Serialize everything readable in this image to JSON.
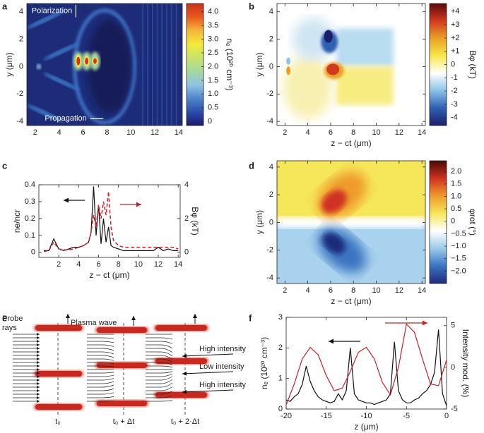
{
  "chart_data": [
    {
      "type": "heatmap",
      "panel": "a",
      "ylabel": "y (μm)",
      "xlim": [
        1.3,
        14.3
      ],
      "xticks": [
        2,
        4,
        6,
        8,
        10,
        12,
        14
      ],
      "ylim": [
        -4.3,
        4.6
      ],
      "yticks": [
        -4,
        -2,
        0,
        2,
        4
      ],
      "annotations": [
        "Polarization",
        "Propagation"
      ],
      "colorbar": {
        "label": "nₑ (10²⁰ cm⁻³)",
        "lim": [
          -0.15,
          4.3
        ],
        "ticks": [
          0,
          {
            "value": 0.5,
            "label": "0.5"
          },
          {
            "value": 1,
            "label": "1.0"
          },
          {
            "value": 1.5,
            "label": "1.5"
          },
          {
            "value": 2,
            "label": "2.0"
          },
          {
            "value": 2.5,
            "label": "2.5"
          },
          {
            "value": 3,
            "label": "3.0"
          },
          {
            "value": 3.5,
            "label": "3.5"
          },
          {
            "value": 4,
            "label": "4.0"
          }
        ],
        "colors": [
          "#1a1a6e",
          "#2b4dab",
          "#4f86c9",
          "#8fc4e0",
          "#a8d8a0",
          "#c8e46a",
          "#f2ea3a",
          "#f5b73a",
          "#e85a1e",
          "#c8321a"
        ]
      }
    },
    {
      "type": "heatmap",
      "panel": "b",
      "xlabel": "z − ct (μm)",
      "ylabel": "y (μm)",
      "xlim": [
        1.3,
        14.3
      ],
      "xticks": [
        2,
        4,
        6,
        8,
        10,
        12,
        14
      ],
      "ylim": [
        -4.3,
        4.6
      ],
      "yticks": [
        -4,
        -2,
        0,
        2,
        4
      ],
      "colorbar": {
        "label": "Bφ (kT)",
        "lim": [
          -4.6,
          4.6
        ],
        "ticks": [
          -4,
          -3,
          -2,
          -1,
          0,
          {
            "value": 1,
            "label": "+1"
          },
          {
            "value": 2,
            "label": "+2"
          },
          {
            "value": 3,
            "label": "+3"
          },
          {
            "value": 4,
            "label": "+4"
          }
        ],
        "colors": [
          "#1a1f6b",
          "#2e5fb0",
          "#8ac3e6",
          "#ffffff",
          "#f7e84a",
          "#e9a025",
          "#d23a1e",
          "#5a0a0a"
        ]
      }
    },
    {
      "type": "line",
      "panel": "c",
      "xlabel": "z − ct (μm)",
      "ylabel": "ne/ncr",
      "y2label": "Bφ (kT)",
      "xlim": [
        0,
        14.2
      ],
      "xticks": [
        2,
        4,
        6,
        8,
        10,
        12,
        14
      ],
      "ylim": [
        -0.03,
        0.4
      ],
      "yticks": [
        0,
        0.1,
        0.2,
        0.3,
        0.4
      ],
      "y2lim": [
        -0.3,
        4
      ],
      "y2ticks": [
        0,
        2,
        4
      ],
      "x": [
        0.5,
        1,
        1.5,
        2,
        2.5,
        3,
        3.5,
        4,
        4.5,
        5,
        5.25,
        5.5,
        5.75,
        6,
        6.25,
        6.5,
        6.75,
        7,
        7.25,
        7.5,
        8,
        8.5,
        9,
        9.5,
        10,
        10.5,
        11,
        11.5,
        12,
        12.5,
        13,
        13.5,
        14
      ],
      "series": [
        {
          "color": "#111111",
          "values": [
            0.01,
            0.01,
            0.08,
            0.02,
            0.01,
            0.02,
            0.03,
            0.03,
            0.04,
            0.06,
            0.12,
            0.39,
            0.1,
            0.28,
            0.05,
            0.2,
            0.06,
            0.15,
            0.04,
            0.03,
            0.02,
            0.01,
            0.01,
            0.01,
            0.01,
            0.01,
            0.01,
            0.01,
            0.03,
            0.01,
            0.02,
            0.01,
            0.01
          ]
        },
        {
          "color": "#d0202a",
          "axis": "y2",
          "dashed": true,
          "values": [
            0.05,
            0.1,
            0.6,
            0.2,
            0.15,
            0.15,
            0.2,
            0.3,
            0.4,
            0.6,
            1.2,
            2.2,
            1.5,
            2.8,
            2.0,
            3.0,
            2.2,
            3.6,
            1.5,
            0.7,
            0.4,
            0.3,
            0.3,
            0.3,
            0.3,
            0.3,
            0.3,
            0.3,
            0.3,
            0.3,
            0.3,
            0.3,
            0.2
          ]
        }
      ]
    },
    {
      "type": "heatmap",
      "panel": "d",
      "xlabel": "z − ct (μm)",
      "ylabel": "y (μm)",
      "xlim": [
        1.3,
        14.3
      ],
      "xticks": [
        2,
        4,
        6,
        8,
        10,
        12,
        14
      ],
      "ylim": [
        -4.4,
        4.45
      ],
      "yticks": [
        -4,
        -2,
        0,
        2,
        4
      ],
      "colorbar": {
        "label": "φrot (°)",
        "lim": [
          -2.5,
          2.43
        ],
        "ticks": [
          {
            "value": -2,
            "label": "−2.0"
          },
          {
            "value": -1.5,
            "label": "−1.5"
          },
          {
            "value": -1,
            "label": "−1.0"
          },
          {
            "value": -0.5,
            "label": "−0.5"
          },
          0,
          {
            "value": 0.5,
            "label": "0.5"
          },
          {
            "value": 1,
            "label": "1.0"
          },
          {
            "value": 1.5,
            "label": "1.5"
          },
          {
            "value": 2,
            "label": "2.0"
          }
        ],
        "colors": [
          "#1e2a7a",
          "#3a73c0",
          "#9ccbea",
          "#ffffff",
          "#f6e65a",
          "#ef9a2a",
          "#cf3320",
          "#4a0808"
        ]
      }
    },
    {
      "type": "line",
      "panel": "f",
      "xlabel": "z (μm)",
      "ylabel": "nₑ (10²⁰ cm⁻³)",
      "y2label": "Intensity mod. (%)",
      "xlim": [
        -20,
        0
      ],
      "xticks": [
        -20,
        -15,
        -10,
        -5,
        0
      ],
      "ylim": [
        0,
        3
      ],
      "yticks": [
        0,
        1,
        2,
        3
      ],
      "y2lim": [
        -5,
        6
      ],
      "y2ticks": [
        -5,
        0,
        5
      ],
      "series": [
        {
          "color": "#111111",
          "x": [
            -20,
            -19.5,
            -19,
            -18.5,
            -18,
            -17.5,
            -17,
            -16.5,
            -16,
            -15.5,
            -15,
            -14.5,
            -14,
            -13.5,
            -13,
            -12.5,
            -12,
            -11.5,
            -11,
            -10.5,
            -10,
            -9.5,
            -9,
            -8.5,
            -8,
            -7.5,
            -7,
            -6.5,
            -6,
            -5.5,
            -5,
            -4.5,
            -4,
            -3.5,
            -3,
            -2.5,
            -2,
            -1.5,
            -1,
            -0.5,
            0
          ],
          "values": [
            0.3,
            0.25,
            0.4,
            0.5,
            0.8,
            1.4,
            0.9,
            0.6,
            0.4,
            0.3,
            0.25,
            0.2,
            0.25,
            0.5,
            0.3,
            0.6,
            2.0,
            0.5,
            0.3,
            0.25,
            0.2,
            0.2,
            0.15,
            0.2,
            0.25,
            0.3,
            0.5,
            2.2,
            0.6,
            0.3,
            0.2,
            0.2,
            0.3,
            0.35,
            0.5,
            0.6,
            0.8,
            1.2,
            2.6,
            0.5,
            0.1
          ]
        },
        {
          "color": "#c8202a",
          "axis": "y2",
          "x": [
            -20,
            -19,
            -18,
            -17,
            -16,
            -15,
            -14,
            -13,
            -12,
            -11,
            -10,
            -9,
            -8,
            -7,
            -6,
            -5,
            -4,
            -3,
            -2,
            -1,
            0
          ],
          "values": [
            -4.5,
            -2,
            1,
            2.4,
            1.5,
            -1,
            -2.8,
            -2.5,
            -0.5,
            1.8,
            2.4,
            1,
            -1.8,
            -3.3,
            0,
            5.2,
            4.2,
            1,
            -2,
            -2.2,
            0.9
          ]
        }
      ]
    }
  ],
  "diagram": {
    "panel": "e",
    "probe_rays": "Probe rays",
    "plasma_wave": "Plasma wave",
    "intensity_labels": [
      "High intensity",
      "Low intensity",
      "High intensity"
    ],
    "times": [
      "t₀",
      "t₀ + Δt",
      "t₀ + 2·Δt"
    ]
  }
}
